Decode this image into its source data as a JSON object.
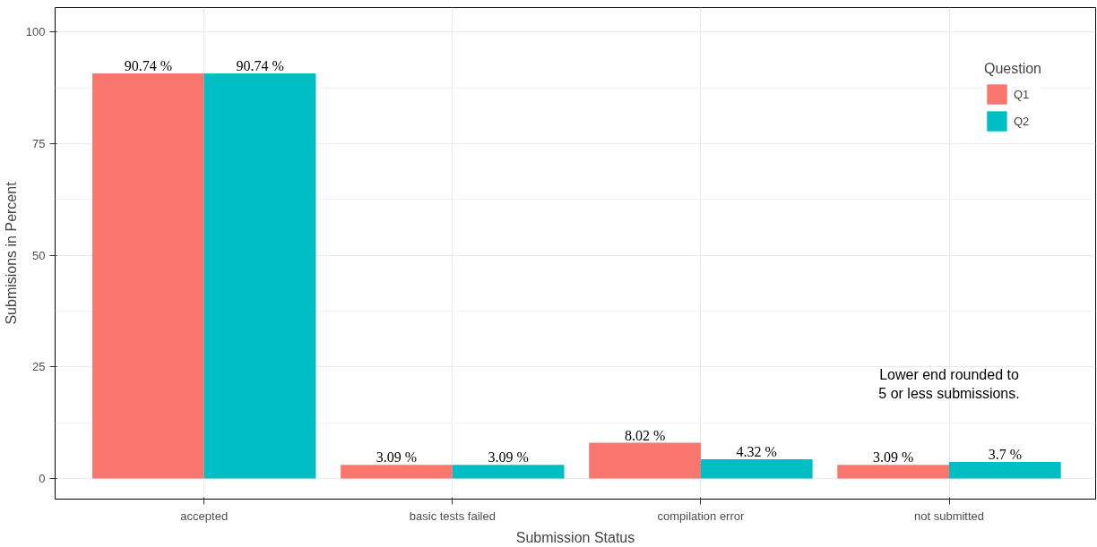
{
  "chart_data": {
    "type": "bar",
    "xlabel": "Submission Status",
    "ylabel": "Submisions in Percent",
    "legend_title": "Question",
    "categories": [
      "accepted",
      "basic tests failed",
      "compilation error",
      "not submitted"
    ],
    "series": [
      {
        "name": "Q1",
        "color": "#f8766d",
        "values": [
          90.74,
          3.09,
          8.02,
          3.09
        ],
        "value_labels": [
          "90.74 %",
          "3.09 %",
          "8.02 %",
          "3.09 %"
        ]
      },
      {
        "name": "Q2",
        "color": "#00bfc4",
        "values": [
          90.74,
          3.09,
          4.32,
          3.7
        ],
        "value_labels": [
          "90.74 %",
          "3.09 %",
          "4.32 %",
          "3.7 %"
        ]
      }
    ],
    "ylim": [
      -4.6,
      105.5
    ],
    "yticks": [
      0,
      25,
      50,
      75,
      100
    ],
    "grid": true,
    "legend": "top right",
    "annotations": [
      "Lower end rounded to\n5 or less submissions."
    ]
  }
}
